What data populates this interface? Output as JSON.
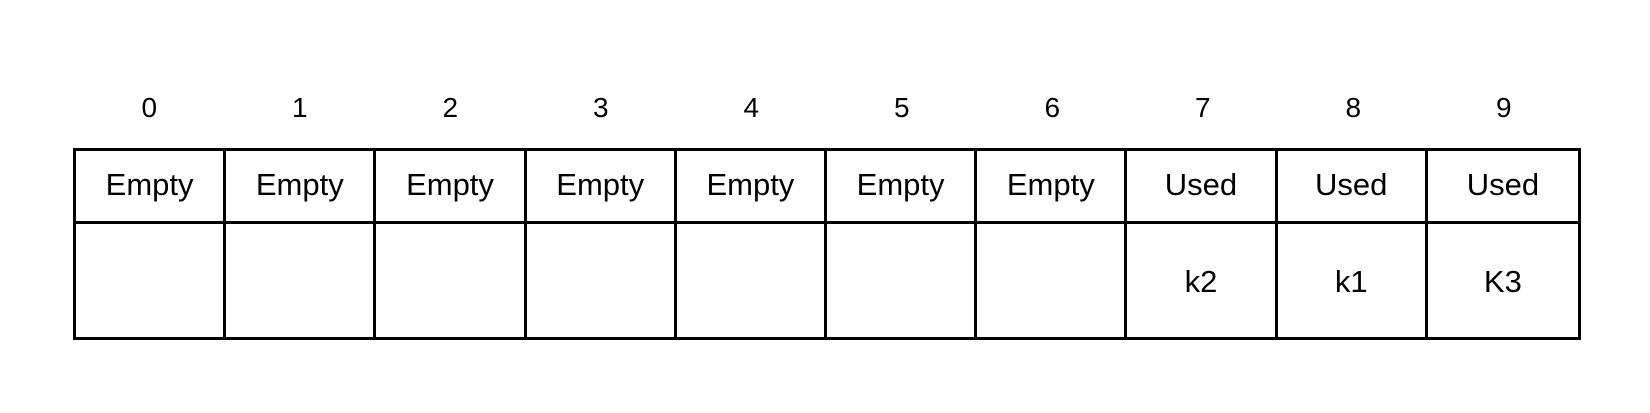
{
  "slots": [
    {
      "index": "0",
      "status": "Empty",
      "key": ""
    },
    {
      "index": "1",
      "status": "Empty",
      "key": ""
    },
    {
      "index": "2",
      "status": "Empty",
      "key": ""
    },
    {
      "index": "3",
      "status": "Empty",
      "key": ""
    },
    {
      "index": "4",
      "status": "Empty",
      "key": ""
    },
    {
      "index": "5",
      "status": "Empty",
      "key": ""
    },
    {
      "index": "6",
      "status": "Empty",
      "key": ""
    },
    {
      "index": "7",
      "status": "Used",
      "key": "k2"
    },
    {
      "index": "8",
      "status": "Used",
      "key": "k1"
    },
    {
      "index": "9",
      "status": "Used",
      "key": "K3"
    }
  ],
  "colors": {
    "stroke": "#000000",
    "background": "#ffffff",
    "text": "#000000"
  }
}
